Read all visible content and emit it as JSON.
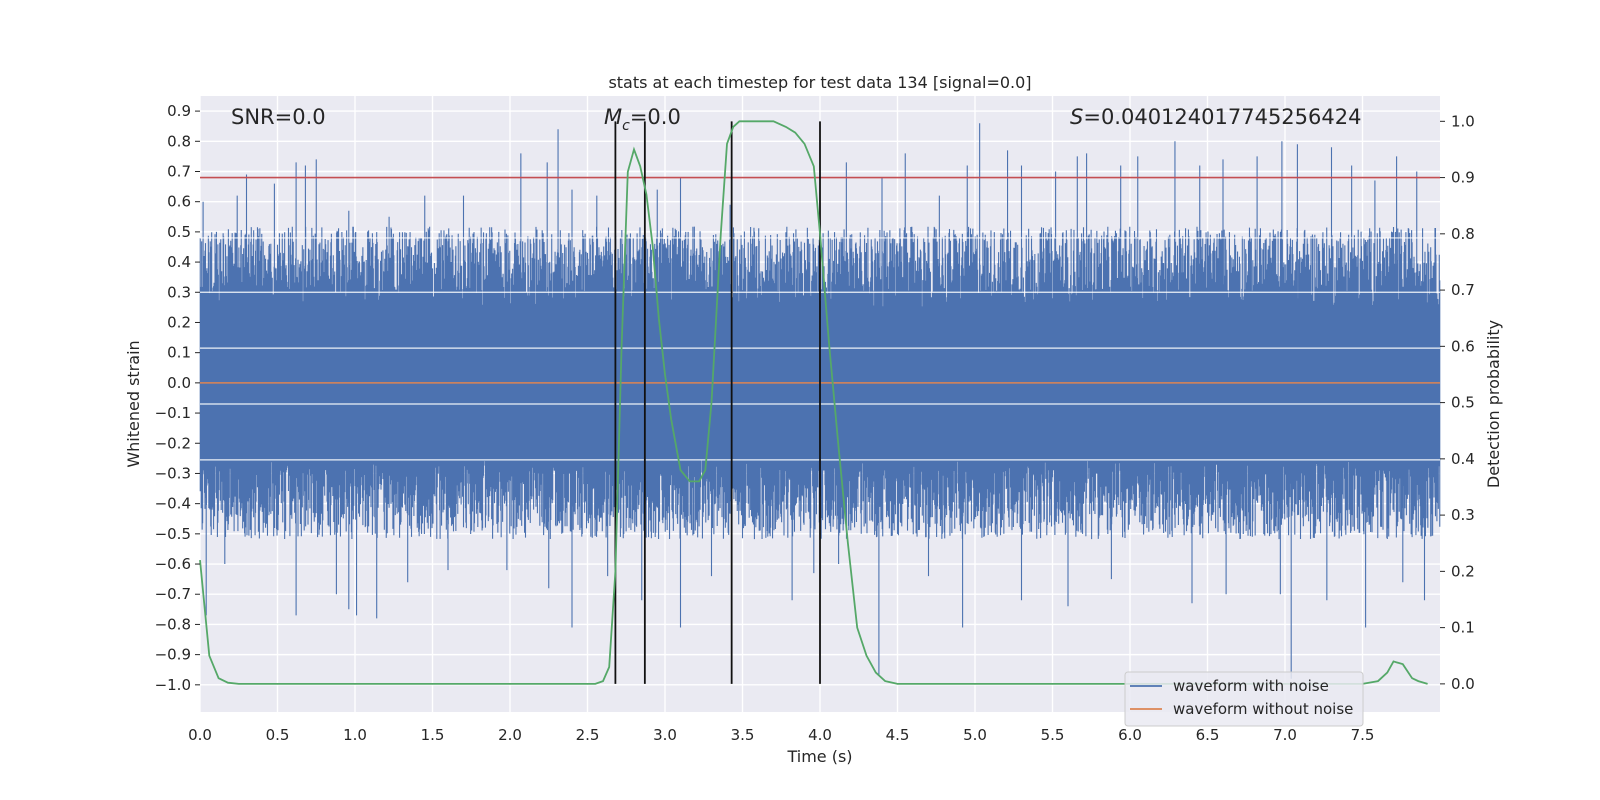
{
  "chart_data": {
    "type": "line",
    "title": "stats at each timestep for test data 134 [signal=0.0]",
    "xlabel": "Time (s)",
    "ylabel": "Whitened strain",
    "y2label": "Detection probability",
    "xlim": [
      0.0,
      8.0
    ],
    "ylim": [
      -1.09,
      0.95
    ],
    "y2lim": [
      -0.05,
      1.045
    ],
    "xticks": [
      0.0,
      0.5,
      1.0,
      1.5,
      2.0,
      2.5,
      3.0,
      3.5,
      4.0,
      4.5,
      5.0,
      5.5,
      6.0,
      6.5,
      7.0,
      7.5
    ],
    "xtick_labels": [
      "0.0",
      "0.5",
      "1.0",
      "1.5",
      "2.0",
      "2.5",
      "3.0",
      "3.5",
      "4.0",
      "4.5",
      "5.0",
      "5.5",
      "6.0",
      "6.5",
      "7.0",
      "7.5"
    ],
    "yticks": [
      0.9,
      0.8,
      0.7,
      0.6,
      0.5,
      0.4,
      0.3,
      0.2,
      0.1,
      0.0,
      -0.1,
      -0.2,
      -0.3,
      -0.4,
      -0.5,
      -0.6,
      -0.7,
      -0.8,
      -0.9,
      -1.0
    ],
    "ytick_labels": [
      "0.9",
      "0.8",
      "0.7",
      "0.6",
      "0.5",
      "0.4",
      "0.3",
      "0.2",
      "0.1",
      "0.0",
      "−0.1",
      "−0.2",
      "−0.3",
      "−0.4",
      "−0.5",
      "−0.6",
      "−0.7",
      "−0.8",
      "−0.9",
      "−1.0"
    ],
    "y2ticks": [
      1.0,
      0.9,
      0.8,
      0.7,
      0.6,
      0.5,
      0.4,
      0.3,
      0.2,
      0.1,
      0.0
    ],
    "y2tick_labels": [
      "1.0",
      "0.9",
      "0.8",
      "0.7",
      "0.6",
      "0.5",
      "0.4",
      "0.3",
      "0.2",
      "0.1",
      "0.0"
    ],
    "annotations": {
      "snr": "SNR=0.0",
      "mc_symbol": "M",
      "mc_sub": "c",
      "mc_value": "=0.0",
      "s_symbol": "S",
      "s_value": "=0.040124017745256424"
    },
    "threshold": 0.9,
    "vlines": [
      2.68,
      2.87,
      3.43,
      4.0
    ],
    "noise_envelope": {
      "typical_abs": 0.45,
      "positive_spikes": [
        [
          0.02,
          0.6
        ],
        [
          0.24,
          0.62
        ],
        [
          0.3,
          0.69
        ],
        [
          0.48,
          0.66
        ],
        [
          0.62,
          0.73
        ],
        [
          0.68,
          0.72
        ],
        [
          0.75,
          0.74
        ],
        [
          0.96,
          0.57
        ],
        [
          1.22,
          0.55
        ],
        [
          1.45,
          0.62
        ],
        [
          1.7,
          0.62
        ],
        [
          2.07,
          0.76
        ],
        [
          2.24,
          0.73
        ],
        [
          2.31,
          0.84
        ],
        [
          2.4,
          0.64
        ],
        [
          2.56,
          0.62
        ],
        [
          2.95,
          0.64
        ],
        [
          3.1,
          0.68
        ],
        [
          3.42,
          0.59
        ],
        [
          4.17,
          0.73
        ],
        [
          4.4,
          0.68
        ],
        [
          4.55,
          0.76
        ],
        [
          4.77,
          0.62
        ],
        [
          4.95,
          0.72
        ],
        [
          5.03,
          0.86
        ],
        [
          5.21,
          0.77
        ],
        [
          5.3,
          0.72
        ],
        [
          5.52,
          0.7
        ],
        [
          5.66,
          0.75
        ],
        [
          5.72,
          0.76
        ],
        [
          5.94,
          0.72
        ],
        [
          6.05,
          0.75
        ],
        [
          6.29,
          0.8
        ],
        [
          6.45,
          0.72
        ],
        [
          6.6,
          0.74
        ],
        [
          6.82,
          0.75
        ],
        [
          6.98,
          0.8
        ],
        [
          7.08,
          0.79
        ],
        [
          7.3,
          0.78
        ],
        [
          7.43,
          0.72
        ],
        [
          7.58,
          0.67
        ],
        [
          7.72,
          0.75
        ],
        [
          7.85,
          0.7
        ]
      ],
      "negative_spikes": [
        [
          0.04,
          -0.77
        ],
        [
          0.16,
          -0.6
        ],
        [
          0.62,
          -0.77
        ],
        [
          0.88,
          -0.7
        ],
        [
          0.96,
          -0.75
        ],
        [
          1.01,
          -0.77
        ],
        [
          1.14,
          -0.78
        ],
        [
          1.34,
          -0.66
        ],
        [
          1.6,
          -0.62
        ],
        [
          1.98,
          -0.62
        ],
        [
          2.25,
          -0.68
        ],
        [
          2.4,
          -0.81
        ],
        [
          2.63,
          -0.64
        ],
        [
          2.85,
          -0.72
        ],
        [
          3.1,
          -0.81
        ],
        [
          3.3,
          -0.64
        ],
        [
          3.82,
          -0.72
        ],
        [
          3.96,
          -0.63
        ],
        [
          4.12,
          -0.6
        ],
        [
          4.38,
          -0.97
        ],
        [
          4.7,
          -0.64
        ],
        [
          4.92,
          -0.81
        ],
        [
          5.3,
          -0.72
        ],
        [
          5.6,
          -0.74
        ],
        [
          5.88,
          -0.65
        ],
        [
          6.4,
          -0.73
        ],
        [
          6.62,
          -0.7
        ],
        [
          6.97,
          -0.7
        ],
        [
          7.04,
          -0.98
        ],
        [
          7.27,
          -0.72
        ],
        [
          7.52,
          -0.81
        ],
        [
          7.76,
          -0.66
        ],
        [
          7.9,
          -0.72
        ]
      ]
    },
    "series": [
      {
        "name": "waveform with noise",
        "color": "#4c72b0",
        "axis": "left"
      },
      {
        "name": "waveform without noise",
        "color": "#dd8452",
        "axis": "left",
        "value": 0.0
      },
      {
        "name": "detection probability",
        "color": "#55a868",
        "axis": "right",
        "x": [
          0.0,
          0.06,
          0.12,
          0.18,
          0.25,
          0.5,
          1.0,
          1.5,
          2.0,
          2.4,
          2.55,
          2.6,
          2.64,
          2.68,
          2.72,
          2.76,
          2.8,
          2.84,
          2.88,
          2.92,
          2.96,
          3.0,
          3.04,
          3.1,
          3.16,
          3.22,
          3.26,
          3.3,
          3.36,
          3.4,
          3.44,
          3.48,
          3.52,
          3.57,
          3.62,
          3.7,
          3.78,
          3.84,
          3.9,
          3.96,
          4.0,
          4.06,
          4.12,
          4.18,
          4.24,
          4.3,
          4.36,
          4.42,
          4.5,
          4.7,
          5.0,
          5.5,
          6.0,
          6.5,
          7.0,
          7.3,
          7.5,
          7.6,
          7.66,
          7.7,
          7.76,
          7.82,
          7.86,
          7.92
        ],
        "y": [
          0.22,
          0.05,
          0.01,
          0.002,
          0.0,
          0.0,
          0.0,
          0.0,
          0.0,
          0.0,
          0.0,
          0.005,
          0.03,
          0.2,
          0.6,
          0.91,
          0.95,
          0.92,
          0.87,
          0.78,
          0.65,
          0.55,
          0.47,
          0.38,
          0.36,
          0.36,
          0.38,
          0.5,
          0.8,
          0.96,
          0.99,
          1.0,
          1.0,
          1.0,
          1.0,
          1.0,
          0.99,
          0.98,
          0.96,
          0.92,
          0.8,
          0.6,
          0.42,
          0.25,
          0.1,
          0.05,
          0.02,
          0.005,
          0.0,
          0.0,
          0.0,
          0.0,
          0.0,
          0.0,
          0.0,
          0.0,
          0.0,
          0.005,
          0.02,
          0.04,
          0.035,
          0.01,
          0.005,
          0.0
        ]
      }
    ],
    "legend_position": "bottom-right",
    "grid": true
  }
}
